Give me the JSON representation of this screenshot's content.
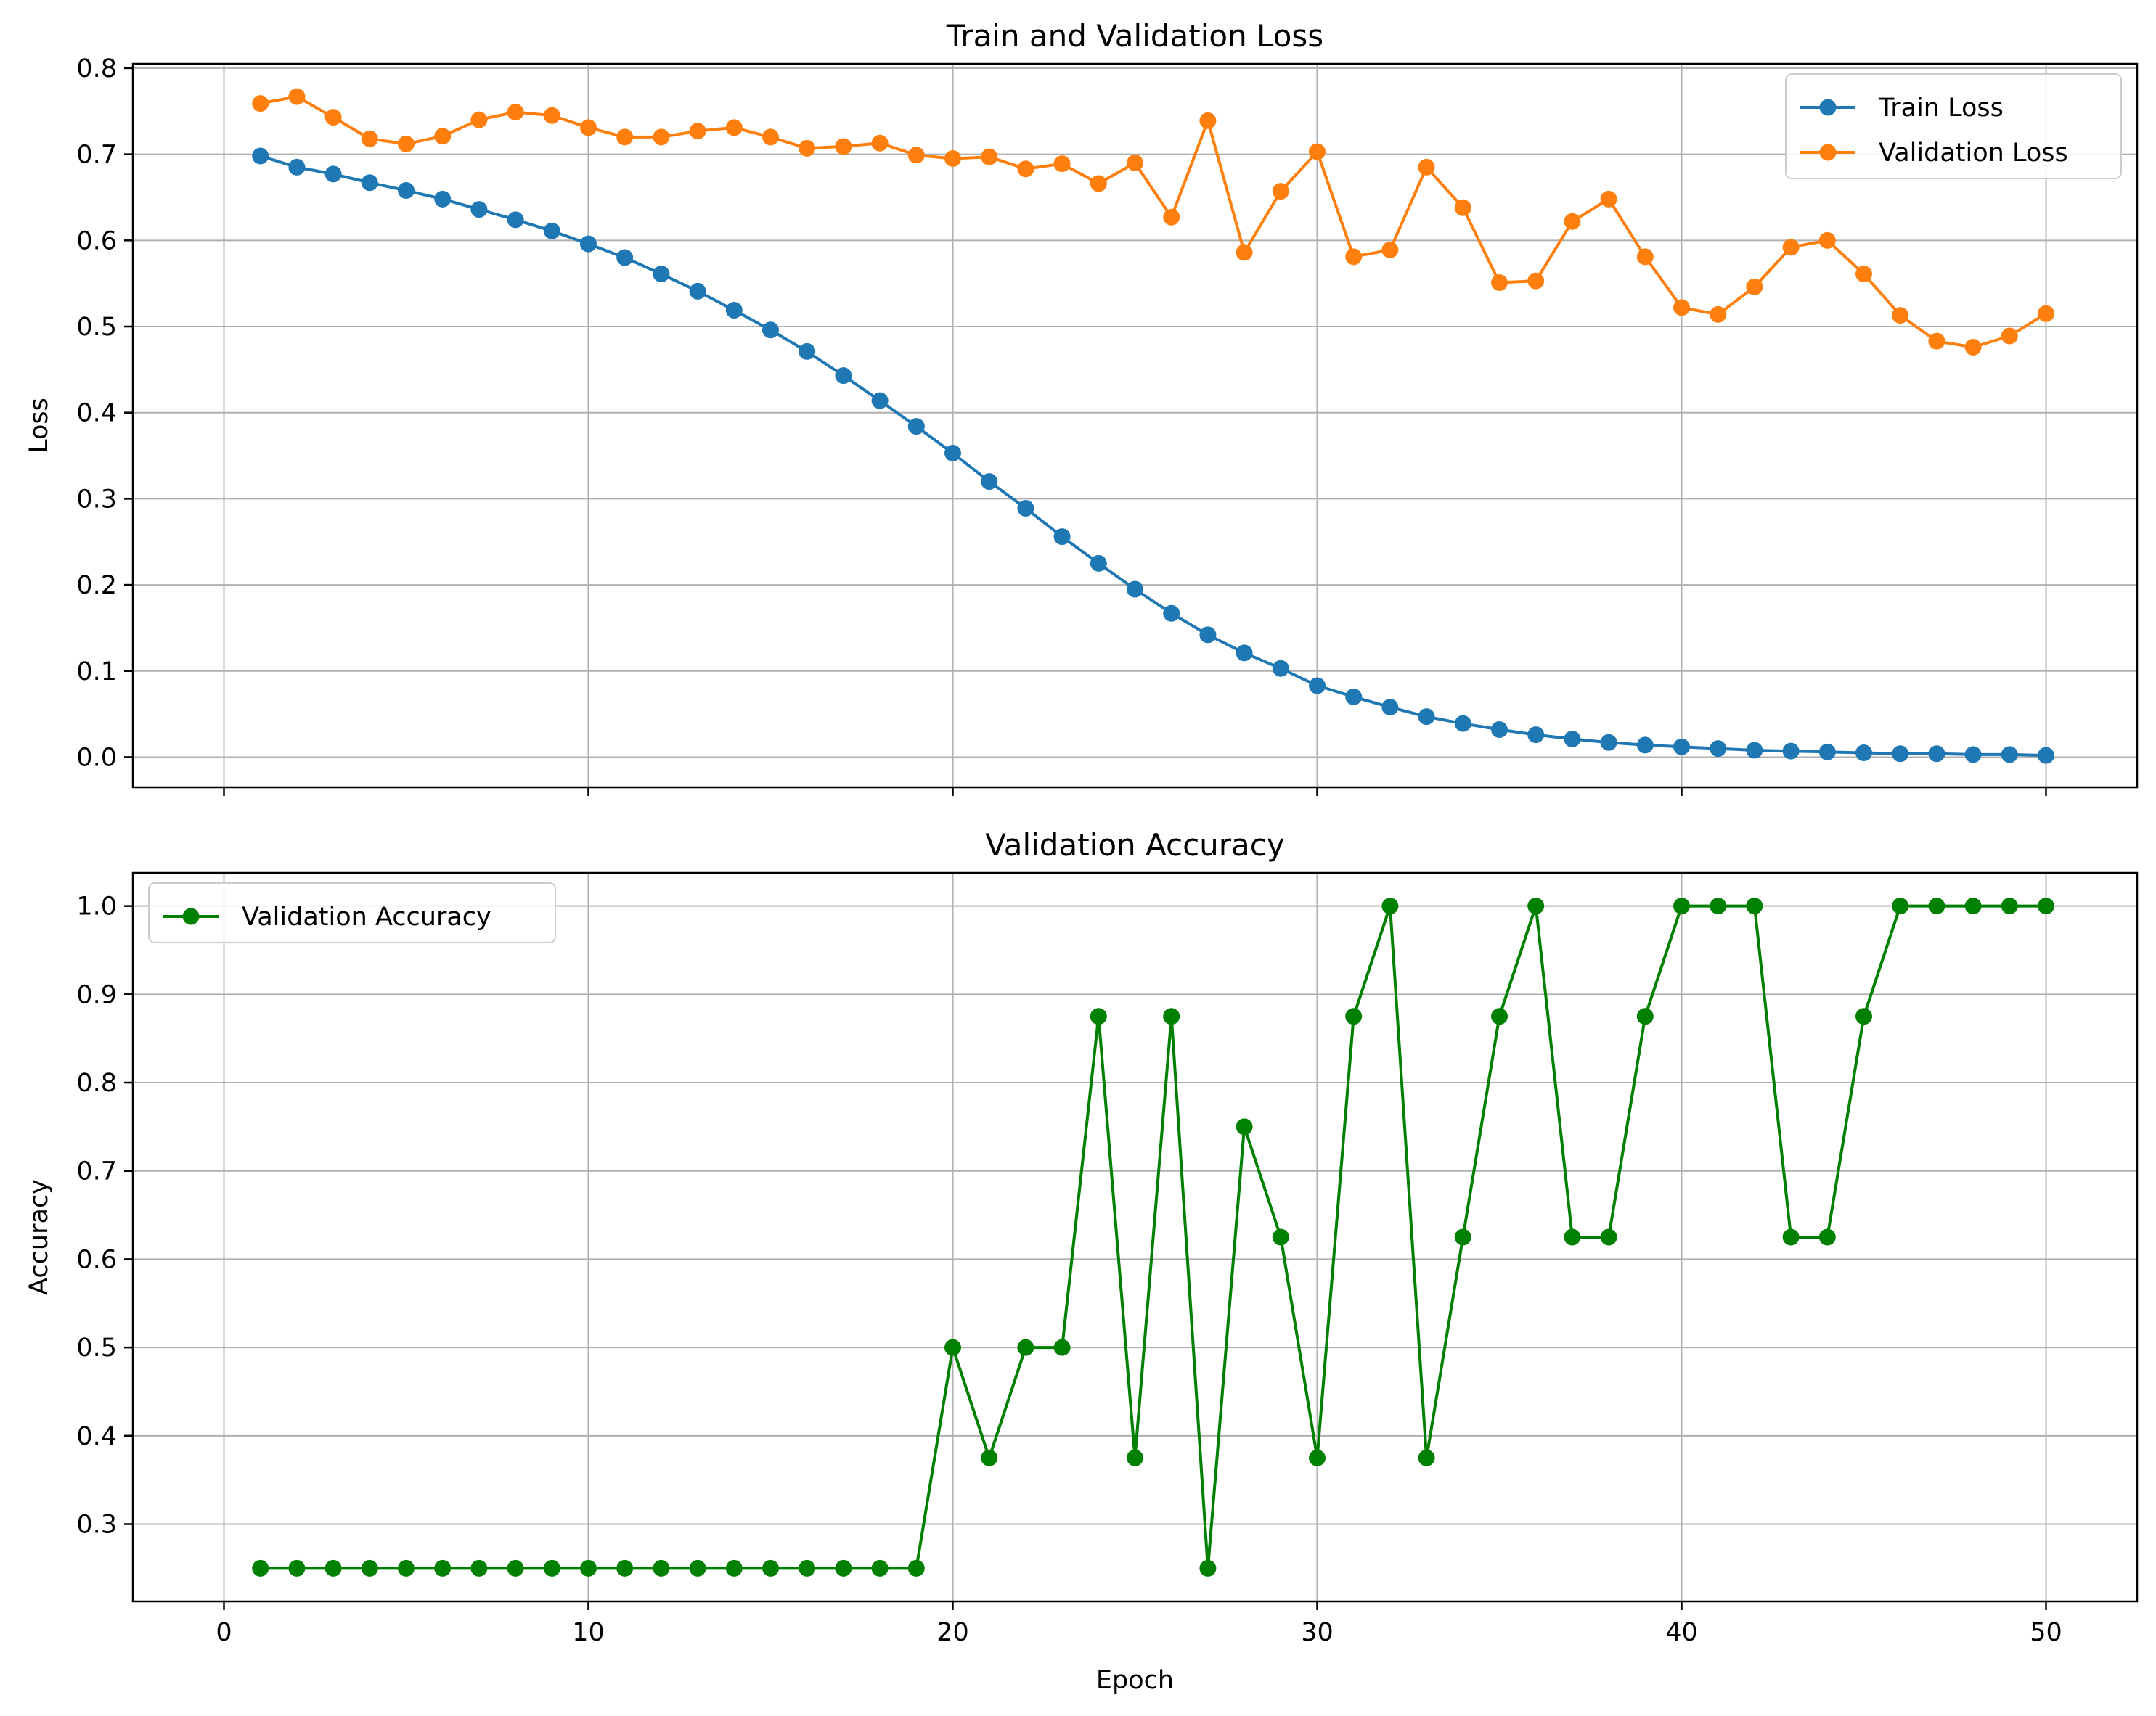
{
  "chart_data": [
    {
      "type": "line",
      "title": "Train and Validation Loss",
      "xlabel": "",
      "ylabel": "Loss",
      "xlim": [
        -2.5,
        52.5
      ],
      "ylim": [
        -0.035,
        0.805
      ],
      "xticks": [
        0,
        10,
        20,
        30,
        40,
        50
      ],
      "xtick_labels_visible": false,
      "yticks": [
        0.0,
        0.1,
        0.2,
        0.3,
        0.4,
        0.5,
        0.6,
        0.7,
        0.8
      ],
      "ytick_labels": [
        "0.0",
        "0.1",
        "0.2",
        "0.3",
        "0.4",
        "0.5",
        "0.6",
        "0.7",
        "0.8"
      ],
      "grid": true,
      "legend": "upper-right",
      "x": [
        1,
        2,
        3,
        4,
        5,
        6,
        7,
        8,
        9,
        10,
        11,
        12,
        13,
        14,
        15,
        16,
        17,
        18,
        19,
        20,
        21,
        22,
        23,
        24,
        25,
        26,
        27,
        28,
        29,
        30,
        31,
        32,
        33,
        34,
        35,
        36,
        37,
        38,
        39,
        40,
        41,
        42,
        43,
        44,
        45,
        46,
        47,
        48,
        49,
        50
      ],
      "series": [
        {
          "name": "Train Loss",
          "color": "#1f77b4",
          "marker": "circle",
          "values": [
            0.698,
            0.685,
            0.677,
            0.667,
            0.658,
            0.648,
            0.636,
            0.624,
            0.611,
            0.596,
            0.58,
            0.561,
            0.541,
            0.519,
            0.496,
            0.471,
            0.443,
            0.414,
            0.384,
            0.353,
            0.32,
            0.289,
            0.256,
            0.225,
            0.195,
            0.167,
            0.142,
            0.121,
            0.103,
            0.083,
            0.07,
            0.058,
            0.047,
            0.039,
            0.032,
            0.026,
            0.021,
            0.017,
            0.014,
            0.012,
            0.01,
            0.008,
            0.007,
            0.006,
            0.005,
            0.004,
            0.004,
            0.003,
            0.003,
            0.002
          ]
        },
        {
          "name": "Validation Loss",
          "color": "#ff7f0e",
          "marker": "circle",
          "values": [
            0.759,
            0.767,
            0.743,
            0.718,
            0.712,
            0.721,
            0.74,
            0.749,
            0.745,
            0.731,
            0.72,
            0.72,
            0.727,
            0.731,
            0.72,
            0.707,
            0.709,
            0.713,
            0.699,
            0.695,
            0.697,
            0.683,
            0.689,
            0.666,
            0.69,
            0.627,
            0.739,
            0.586,
            0.657,
            0.703,
            0.581,
            0.589,
            0.685,
            0.638,
            0.551,
            0.553,
            0.622,
            0.648,
            0.581,
            0.522,
            0.514,
            0.546,
            0.592,
            0.6,
            0.561,
            0.513,
            0.483,
            0.476,
            0.489,
            0.515
          ]
        }
      ]
    },
    {
      "type": "line",
      "title": "Validation Accuracy",
      "xlabel": "Epoch",
      "ylabel": "Accuracy",
      "xlim": [
        -2.5,
        52.5
      ],
      "ylim": [
        0.2125,
        1.0375
      ],
      "xticks": [
        0,
        10,
        20,
        30,
        40,
        50
      ],
      "xtick_labels": [
        "0",
        "10",
        "20",
        "30",
        "40",
        "50"
      ],
      "xtick_labels_visible": true,
      "yticks": [
        0.3,
        0.4,
        0.5,
        0.6,
        0.7,
        0.8,
        0.9,
        1.0
      ],
      "ytick_labels": [
        "0.3",
        "0.4",
        "0.5",
        "0.6",
        "0.7",
        "0.8",
        "0.9",
        "1.0"
      ],
      "grid": true,
      "legend": "upper-left",
      "x": [
        1,
        2,
        3,
        4,
        5,
        6,
        7,
        8,
        9,
        10,
        11,
        12,
        13,
        14,
        15,
        16,
        17,
        18,
        19,
        20,
        21,
        22,
        23,
        24,
        25,
        26,
        27,
        28,
        29,
        30,
        31,
        32,
        33,
        34,
        35,
        36,
        37,
        38,
        39,
        40,
        41,
        42,
        43,
        44,
        45,
        46,
        47,
        48,
        49,
        50
      ],
      "series": [
        {
          "name": "Validation Accuracy",
          "color": "#008000",
          "marker": "circle",
          "values": [
            0.25,
            0.25,
            0.25,
            0.25,
            0.25,
            0.25,
            0.25,
            0.25,
            0.25,
            0.25,
            0.25,
            0.25,
            0.25,
            0.25,
            0.25,
            0.25,
            0.25,
            0.25,
            0.25,
            0.5,
            0.375,
            0.5,
            0.5,
            0.875,
            0.375,
            0.875,
            0.25,
            0.75,
            0.625,
            0.375,
            0.875,
            1.0,
            0.375,
            0.625,
            0.875,
            1.0,
            0.625,
            0.625,
            0.875,
            1.0,
            1.0,
            1.0,
            0.625,
            0.625,
            0.875,
            1.0,
            1.0,
            1.0,
            1.0,
            1.0
          ]
        }
      ]
    }
  ]
}
